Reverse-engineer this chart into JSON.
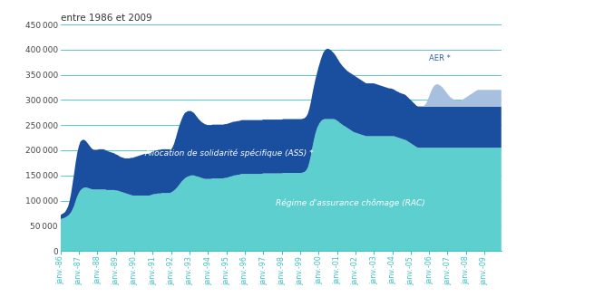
{
  "title": "entre 1986 et 2009",
  "background_color": "#ffffff",
  "plot_bg_color": "#ffffff",
  "grid_color": "#40c0c0",
  "right_panel_color": "#40c0c0",
  "ylim": [
    0,
    450000
  ],
  "yticks": [
    0,
    50000,
    100000,
    150000,
    200000,
    250000,
    300000,
    350000,
    400000,
    450000
  ],
  "color_rac": "#5ecfcf",
  "color_ass": "#1a4fa0",
  "color_aer": "#a8c0e0",
  "label_rac": "Régime d'assurance chômage (RAC)",
  "label_ass": "Allocation de solidarité spécifique (ASS) *",
  "label_aer": "AER *",
  "xtick_labels": [
    "janv.-86",
    "janv.-87",
    "janv.-88",
    "janv.-89",
    "janv.-90",
    "janv.-91",
    "janv.-92",
    "janv.-93",
    "janv.-94",
    "janv.-95",
    "janv.-96",
    "janv.-97",
    "janv.-98",
    "janv.-99",
    "janv.-00",
    "janv.-01",
    "janv.-02",
    "janv.-03",
    "janv.-04",
    "janv.-05",
    "janv.-06",
    "janv.-07",
    "janv.-08",
    "janv.-09"
  ],
  "rac_data": [
    63000,
    64000,
    65000,
    66000,
    68000,
    70000,
    73000,
    77000,
    83000,
    90000,
    100000,
    108000,
    115000,
    120000,
    123000,
    125000,
    126000,
    126000,
    125000,
    124000,
    123000,
    122000,
    122000,
    122000,
    122000,
    122000,
    122000,
    122000,
    122000,
    122000,
    121000,
    121000,
    121000,
    121000,
    121000,
    121000,
    120000,
    120000,
    119000,
    118000,
    117000,
    116000,
    115000,
    114000,
    113000,
    112000,
    111000,
    110000,
    110000,
    110000,
    110000,
    110000,
    110000,
    110000,
    110000,
    110000,
    110000,
    110000,
    110000,
    111000,
    112000,
    113000,
    113000,
    114000,
    114000,
    114000,
    115000,
    115000,
    115000,
    115000,
    115000,
    115000,
    116000,
    118000,
    120000,
    123000,
    126000,
    130000,
    134000,
    138000,
    141000,
    144000,
    146000,
    148000,
    149000,
    150000,
    150000,
    150000,
    149000,
    148000,
    147000,
    146000,
    145000,
    144000,
    143000,
    143000,
    143000,
    143000,
    143000,
    144000,
    144000,
    144000,
    144000,
    144000,
    144000,
    144000,
    144000,
    145000,
    145000,
    146000,
    147000,
    148000,
    149000,
    150000,
    150000,
    151000,
    151000,
    152000,
    153000,
    153000,
    153000,
    153000,
    153000,
    153000,
    153000,
    153000,
    153000,
    153000,
    153000,
    153000,
    153000,
    153000,
    154000,
    154000,
    154000,
    154000,
    154000,
    154000,
    154000,
    154000,
    154000,
    154000,
    154000,
    154000,
    154000,
    155000,
    155000,
    155000,
    155000,
    155000,
    155000,
    155000,
    155000,
    155000,
    155000,
    155000,
    155000,
    155000,
    156000,
    157000,
    160000,
    165000,
    175000,
    188000,
    205000,
    220000,
    233000,
    243000,
    250000,
    255000,
    259000,
    261000,
    262000,
    262000,
    262000,
    262000,
    262000,
    262000,
    262000,
    261000,
    259000,
    257000,
    254000,
    252000,
    250000,
    248000,
    246000,
    244000,
    242000,
    240000,
    238000,
    236000,
    235000,
    234000,
    233000,
    232000,
    231000,
    230000,
    229000,
    228000,
    228000,
    228000,
    228000,
    228000,
    228000,
    228000,
    228000,
    228000,
    228000,
    228000,
    228000,
    228000,
    228000,
    228000,
    228000,
    228000,
    228000,
    228000,
    227000,
    226000,
    225000,
    224000,
    223000,
    222000,
    221000,
    220000,
    218000,
    216000,
    214000,
    212000,
    210000,
    208000,
    206000,
    205000,
    205000,
    205000,
    205000,
    205000,
    205000,
    205000,
    205000,
    205000,
    205000,
    205000,
    205000,
    205000,
    205000,
    205000,
    205000,
    205000,
    205000,
    205000,
    205000,
    205000,
    205000,
    205000,
    205000,
    205000,
    205000,
    205000,
    205000,
    205000,
    205000,
    205000,
    205000,
    205000,
    205000,
    205000,
    205000,
    205000,
    205000,
    205000,
    205000,
    205000,
    205000,
    205000,
    205000,
    205000,
    205000,
    205000,
    205000,
    205000,
    205000,
    205000,
    205000,
    205000,
    205000,
    205000
  ],
  "ass_data": [
    8000,
    9000,
    10000,
    11000,
    14000,
    18000,
    26000,
    38000,
    52000,
    65000,
    77000,
    87000,
    93000,
    97000,
    97000,
    96000,
    94000,
    91000,
    88000,
    85000,
    82000,
    80000,
    79000,
    79000,
    79000,
    80000,
    80000,
    80000,
    80000,
    79000,
    78000,
    77000,
    76000,
    75000,
    74000,
    73000,
    72000,
    71000,
    70000,
    69000,
    69000,
    69000,
    69000,
    70000,
    71000,
    72000,
    74000,
    75000,
    76000,
    77000,
    78000,
    79000,
    80000,
    81000,
    82000,
    83000,
    83000,
    84000,
    84000,
    85000,
    85000,
    86000,
    86000,
    86000,
    87000,
    87000,
    87000,
    87000,
    87000,
    87000,
    87000,
    87000,
    85000,
    88000,
    93000,
    100000,
    108000,
    115000,
    120000,
    124000,
    128000,
    130000,
    130000,
    130000,
    129000,
    128000,
    126000,
    124000,
    121000,
    118000,
    115000,
    113000,
    111000,
    110000,
    109000,
    108000,
    107000,
    107000,
    107000,
    107000,
    107000,
    107000,
    107000,
    107000,
    107000,
    107000,
    107000,
    107000,
    107000,
    107000,
    107000,
    107000,
    107000,
    107000,
    107000,
    107000,
    107000,
    107000,
    107000,
    107000,
    107000,
    107000,
    107000,
    107000,
    107000,
    107000,
    107000,
    107000,
    107000,
    107000,
    107000,
    107000,
    107000,
    107000,
    107000,
    107000,
    107000,
    107000,
    107000,
    107000,
    107000,
    107000,
    107000,
    107000,
    107000,
    107000,
    107000,
    107000,
    107000,
    107000,
    107000,
    107000,
    107000,
    107000,
    107000,
    107000,
    107000,
    107000,
    107000,
    107000,
    107000,
    107000,
    107000,
    107000,
    107000,
    107000,
    108000,
    110000,
    115000,
    120000,
    126000,
    132000,
    136000,
    139000,
    140000,
    139000,
    137000,
    134000,
    131000,
    128000,
    125000,
    122000,
    120000,
    118000,
    116000,
    115000,
    114000,
    113000,
    113000,
    113000,
    113000,
    113000,
    112000,
    111000,
    110000,
    109000,
    108000,
    107000,
    106000,
    105000,
    105000,
    105000,
    105000,
    105000,
    105000,
    104000,
    103000,
    102000,
    101000,
    100000,
    99000,
    98000,
    97000,
    96000,
    95000,
    95000,
    94000,
    93000,
    92000,
    91000,
    91000,
    90000,
    90000,
    90000,
    90000,
    89000,
    88000,
    87000,
    86000,
    85000,
    84000,
    83000,
    82000,
    82000,
    82000,
    82000,
    82000,
    82000,
    82000,
    82000,
    82000,
    82000,
    82000,
    82000,
    82000,
    82000,
    82000,
    82000,
    82000,
    82000,
    82000,
    82000,
    82000,
    82000,
    82000,
    82000,
    82000,
    82000,
    82000,
    82000,
    82000,
    82000,
    82000,
    82000,
    82000,
    82000,
    82000,
    82000,
    82000,
    82000,
    82000,
    82000,
    82000,
    82000,
    82000,
    82000,
    82000,
    82000,
    82000,
    82000,
    82000,
    82000,
    82000,
    82000,
    82000,
    82000,
    82000,
    82000
  ],
  "aer_data": [
    0,
    0,
    0,
    0,
    0,
    0,
    0,
    0,
    0,
    0,
    0,
    0,
    0,
    0,
    0,
    0,
    0,
    0,
    0,
    0,
    0,
    0,
    0,
    0,
    0,
    0,
    0,
    0,
    0,
    0,
    0,
    0,
    0,
    0,
    0,
    0,
    0,
    0,
    0,
    0,
    0,
    0,
    0,
    0,
    0,
    0,
    0,
    0,
    0,
    0,
    0,
    0,
    0,
    0,
    0,
    0,
    0,
    0,
    0,
    0,
    0,
    0,
    0,
    0,
    0,
    0,
    0,
    0,
    0,
    0,
    0,
    0,
    0,
    0,
    0,
    0,
    0,
    0,
    0,
    0,
    0,
    0,
    0,
    0,
    0,
    0,
    0,
    0,
    0,
    0,
    0,
    0,
    0,
    0,
    0,
    0,
    0,
    0,
    0,
    0,
    0,
    0,
    0,
    0,
    0,
    0,
    0,
    0,
    0,
    0,
    0,
    0,
    0,
    0,
    0,
    0,
    0,
    0,
    0,
    0,
    0,
    0,
    0,
    0,
    0,
    0,
    0,
    0,
    0,
    0,
    0,
    0,
    0,
    0,
    0,
    0,
    0,
    0,
    0,
    0,
    0,
    0,
    0,
    0,
    0,
    0,
    0,
    0,
    0,
    0,
    0,
    0,
    0,
    0,
    0,
    0,
    0,
    0,
    0,
    0,
    0,
    0,
    0,
    0,
    0,
    0,
    0,
    0,
    0,
    0,
    0,
    0,
    0,
    0,
    0,
    0,
    0,
    0,
    0,
    0,
    0,
    0,
    0,
    0,
    0,
    0,
    0,
    0,
    0,
    0,
    0,
    0,
    0,
    0,
    0,
    0,
    0,
    0,
    0,
    0,
    0,
    0,
    0,
    0,
    0,
    0,
    0,
    0,
    0,
    0,
    0,
    0,
    0,
    0,
    0,
    0,
    0,
    0,
    0,
    0,
    0,
    0,
    0,
    0,
    0,
    0,
    0,
    0,
    0,
    0,
    0,
    0,
    0,
    0,
    0,
    0,
    0,
    2000,
    6000,
    12000,
    20000,
    28000,
    35000,
    40000,
    43000,
    44000,
    44000,
    42000,
    40000,
    37000,
    33000,
    29000,
    25000,
    21000,
    18000,
    16000,
    14000,
    13000,
    12000,
    12000,
    12000,
    13000,
    14000,
    16000,
    18000,
    20000,
    22000,
    24000,
    26000,
    28000,
    30000,
    32000,
    33000,
    33000,
    33000,
    33000,
    33000,
    33000,
    33000,
    33000,
    33000,
    33000,
    33000,
    33000,
    33000,
    33000,
    33000,
    33000
  ]
}
